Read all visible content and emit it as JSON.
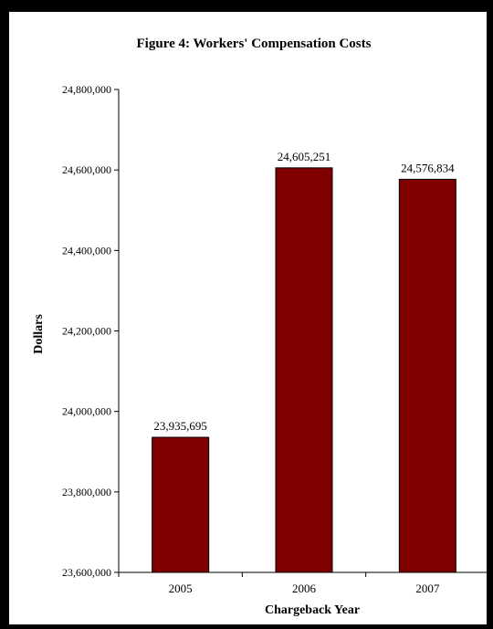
{
  "chart_data": {
    "type": "bar",
    "title": "Figure 4: Workers' Compensation Costs",
    "xlabel": "Chargeback Year",
    "ylabel": "Dollars",
    "categories": [
      "2005",
      "2006",
      "2007"
    ],
    "values": [
      23935695,
      24605251,
      24576834
    ],
    "value_labels": [
      "23,935,695",
      "24,605,251",
      "24,576,834"
    ],
    "ylim": [
      23600000,
      24800000
    ],
    "yticks": [
      23600000,
      23800000,
      24000000,
      24200000,
      24400000,
      24600000,
      24800000
    ],
    "ytick_labels": [
      "23,600,000",
      "23,800,000",
      "24,000,000",
      "24,200,000",
      "24,400,000",
      "24,600,000",
      "24,800,000"
    ],
    "grid": false,
    "legend": "none",
    "bar_color": "#800000",
    "frame_color": "#000000"
  }
}
